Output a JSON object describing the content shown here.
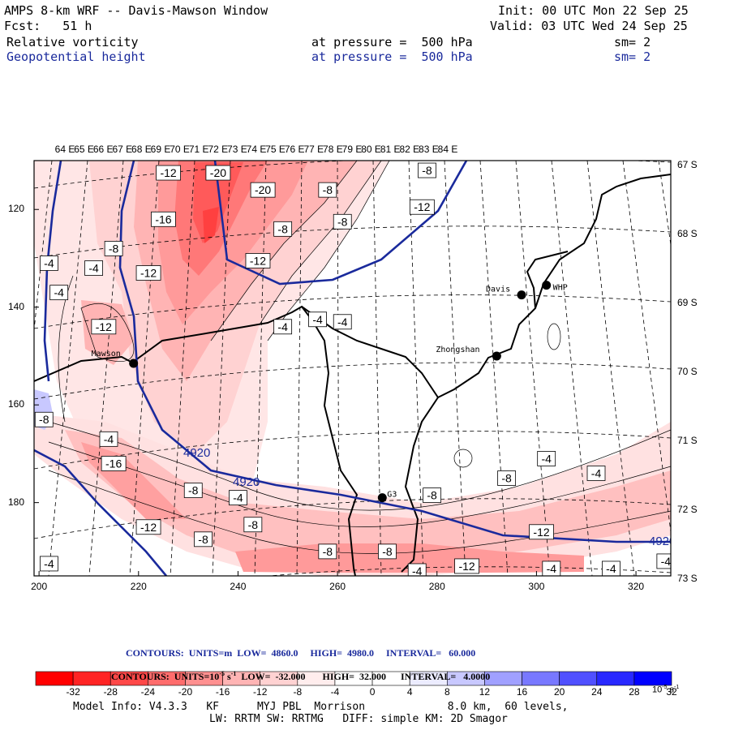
{
  "header": {
    "model": "AMPS 8-km WRF -- Davis-Mawson Window",
    "init": "Init: 00 UTC Mon 22 Sep 25",
    "fcst": "Fcst:   51 h",
    "valid": "Valid: 03 UTC Wed 24 Sep 25",
    "field1": "Relative vorticity",
    "field1_level": "at pressure =  500 hPa",
    "field1_sm": "sm= 2",
    "field2": "Geopotential height",
    "field2_level": "at pressure =  500 hPa",
    "field2_sm": "sm= 2"
  },
  "colors": {
    "height_contour": "#1a2a9c",
    "coast": "#000000"
  },
  "chart_data": {
    "type": "heatmap",
    "title": "Relative vorticity and Geopotential height at 500 hPa",
    "x_ticks": [
      "200",
      "220",
      "240",
      "260",
      "280",
      "300",
      "320"
    ],
    "y_ticks": [
      "120",
      "140",
      "160",
      "180"
    ],
    "lon_labels": [
      "64 E",
      "65 E",
      "66 E",
      "67 E",
      "68 E",
      "69 E",
      "70 E",
      "71 E",
      "72 E",
      "73 E",
      "74 E",
      "75 E",
      "76 E",
      "77 E",
      "78 E",
      "79 E",
      "80 E",
      "81 E",
      "82 E",
      "83 E",
      "84 E"
    ],
    "lat_labels": [
      "67 S",
      "68 S",
      "69 S",
      "70 S",
      "71 S",
      "72 S",
      "73 S"
    ],
    "xlim": [
      199,
      327
    ],
    "ylim": [
      110,
      195
    ],
    "stations": [
      {
        "name": "Mawson",
        "x": 219,
        "y": 151.5
      },
      {
        "name": "Davis",
        "x": 297,
        "y": 137.5
      },
      {
        "name": "WHP",
        "x": 302,
        "y": 135.5
      },
      {
        "name": "Zhongshan",
        "x": 292,
        "y": 150
      },
      {
        "name": "G3",
        "x": 269,
        "y": 179
      }
    ],
    "height_label": "4920",
    "vorticity_labels": [
      {
        "t": "-12",
        "x": 226,
        "y": 112.5
      },
      {
        "t": "-20",
        "x": 236,
        "y": 112.5
      },
      {
        "t": "-20",
        "x": 245,
        "y": 116
      },
      {
        "t": "-8",
        "x": 258,
        "y": 116
      },
      {
        "t": "-8",
        "x": 278,
        "y": 112
      },
      {
        "t": "-12",
        "x": 277,
        "y": 119.5
      },
      {
        "t": "-16",
        "x": 225,
        "y": 122
      },
      {
        "t": "-8",
        "x": 249,
        "y": 124
      },
      {
        "t": "-8",
        "x": 261,
        "y": 122.5
      },
      {
        "t": "-8",
        "x": 215,
        "y": 128
      },
      {
        "t": "-4",
        "x": 202,
        "y": 131
      },
      {
        "t": "-4",
        "x": 211,
        "y": 132
      },
      {
        "t": "-12",
        "x": 222,
        "y": 133
      },
      {
        "t": "-12",
        "x": 244,
        "y": 130.5
      },
      {
        "t": "-4",
        "x": 204,
        "y": 137
      },
      {
        "t": "-12",
        "x": 213,
        "y": 144
      },
      {
        "t": "-4",
        "x": 256,
        "y": 142.5
      },
      {
        "t": "-4",
        "x": 261,
        "y": 143
      },
      {
        "t": "-4",
        "x": 249,
        "y": 144
      },
      {
        "t": "-8",
        "x": 201,
        "y": 163
      },
      {
        "t": "-4",
        "x": 214,
        "y": 167
      },
      {
        "t": "-16",
        "x": 215,
        "y": 172
      },
      {
        "t": "-8",
        "x": 231,
        "y": 177.5
      },
      {
        "t": "-4",
        "x": 240,
        "y": 179
      },
      {
        "t": "-8",
        "x": 243,
        "y": 184.5
      },
      {
        "t": "-12",
        "x": 222,
        "y": 185
      },
      {
        "t": "-8",
        "x": 233,
        "y": 187.5
      },
      {
        "t": "-8",
        "x": 279,
        "y": 178.5
      },
      {
        "t": "-8",
        "x": 294,
        "y": 175
      },
      {
        "t": "-4",
        "x": 302,
        "y": 171
      },
      {
        "t": "-4",
        "x": 312,
        "y": 174
      },
      {
        "t": "-12",
        "x": 301,
        "y": 186
      },
      {
        "t": "-8",
        "x": 258,
        "y": 190
      },
      {
        "t": "-8",
        "x": 270,
        "y": 190
      },
      {
        "t": "-12",
        "x": 286,
        "y": 193
      },
      {
        "t": "-4",
        "x": 276,
        "y": 194
      },
      {
        "t": "-4",
        "x": 303,
        "y": 193.5
      },
      {
        "t": "-4",
        "x": 315,
        "y": 193.5
      },
      {
        "t": "-4",
        "x": 326,
        "y": 192
      },
      {
        "t": "-4",
        "x": 202,
        "y": 192.5
      }
    ],
    "contour_info_height": "CONTOURS:  UNITS=m  LOW=  4860.0     HIGH=  4980.0     INTERVAL=   60.000",
    "contour_info_vort": "CONTOURS:  UNITS=10",
    "contour_info_vort_exp": "-5",
    "contour_info_vort_rest": " s",
    "contour_info_vort_exp2": "-1",
    "contour_info_vort_tail": "  LOW=  -32.000       HIGH=  32.000      INTERVAL=   4.0000",
    "colorbar_ticks": [
      "-32",
      "-28",
      "-24",
      "-20",
      "-16",
      "-12",
      "-8",
      "-4",
      "0",
      "4",
      "8",
      "12",
      "16",
      "20",
      "24",
      "28",
      "32"
    ],
    "colorbar_unit": "10",
    "colorbar_unit_exp": "-5",
    "colorbar_unit_s": " s",
    "colorbar_unit_exp2": "-1",
    "colorbar_colors": [
      "#ff0000",
      "#ff2424",
      "#ff4848",
      "#ff6c6c",
      "#ff9090",
      "#ffb4b4",
      "#ffd2d2",
      "#ffeded",
      "#ffffff",
      "#ffffff",
      "#ececff",
      "#c8c8ff",
      "#a0a0ff",
      "#7878ff",
      "#5050ff",
      "#2828ff",
      "#0000ff"
    ]
  },
  "footer": {
    "line1": "Model Info: V4.3.3   KF      MYJ PBL  Morrison             8.0 km,  60 levels,",
    "line2": "LW: RRTM SW: RRTMG   DIFF: simple KM: 2D Smagor"
  }
}
